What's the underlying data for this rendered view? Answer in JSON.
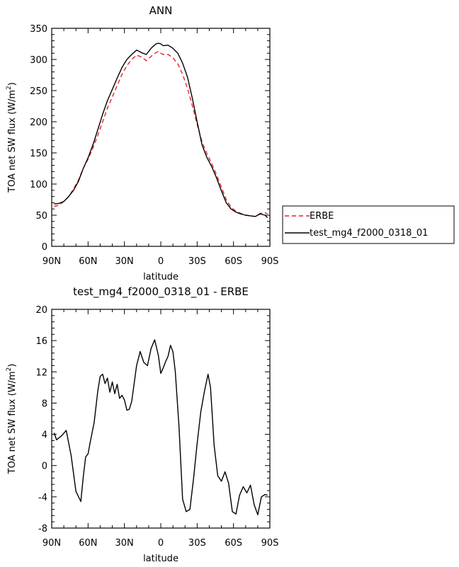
{
  "chart_data": [
    {
      "type": "line",
      "title": "ANN",
      "xlabel": "latitude",
      "ylabel": "TOA net SW flux (W/m",
      "ylabel_sup": "2",
      "ylabel_close": ")",
      "xlim": [
        90,
        -90
      ],
      "ylim": [
        0,
        350
      ],
      "xticks": [
        {
          "value": 90,
          "label": "90N"
        },
        {
          "value": 60,
          "label": "60N"
        },
        {
          "value": 30,
          "label": "30N"
        },
        {
          "value": 0,
          "label": "0"
        },
        {
          "value": -30,
          "label": "30S"
        },
        {
          "value": -60,
          "label": "60S"
        },
        {
          "value": -90,
          "label": "90S"
        }
      ],
      "yticks": [
        0,
        50,
        100,
        150,
        200,
        250,
        300,
        350
      ],
      "grid": false,
      "legend_position": "right",
      "series": [
        {
          "name": "ERBE",
          "color": "#e8202a",
          "dash": "dashed",
          "x": [
            88,
            84,
            80,
            76,
            72,
            68,
            64,
            60,
            56,
            52,
            48,
            44,
            40,
            36,
            32,
            28,
            24,
            20,
            16,
            12,
            8,
            4,
            2,
            0,
            -2,
            -6,
            -10,
            -14,
            -18,
            -22,
            -26,
            -30,
            -34,
            -38,
            -42,
            -46,
            -50,
            -54,
            -58,
            -62,
            -66,
            -70,
            -74,
            -78,
            -82,
            -86,
            -88
          ],
          "y": [
            64,
            66,
            72,
            80,
            92,
            106,
            125,
            140,
            158,
            178,
            200,
            222,
            240,
            258,
            276,
            290,
            300,
            307,
            304,
            298,
            305,
            311,
            313,
            310,
            308,
            308,
            303,
            293,
            276,
            254,
            226,
            196,
            168,
            149,
            133,
            115,
            95,
            75,
            63,
            56,
            53,
            50,
            49,
            48,
            53,
            54,
            52
          ]
        },
        {
          "name": "test_mg4_f2000_0318_01",
          "color": "#000000",
          "dash": "solid",
          "x": [
            88,
            84,
            80,
            76,
            72,
            68,
            64,
            60,
            56,
            52,
            48,
            44,
            40,
            36,
            32,
            28,
            24,
            20,
            16,
            12,
            8,
            4,
            2,
            0,
            -2,
            -6,
            -10,
            -14,
            -18,
            -22,
            -26,
            -30,
            -34,
            -38,
            -42,
            -46,
            -50,
            -54,
            -58,
            -62,
            -66,
            -70,
            -74,
            -78,
            -82,
            -86,
            -88
          ],
          "y": [
            68,
            69,
            72,
            80,
            90,
            104,
            125,
            142,
            163,
            187,
            212,
            234,
            252,
            270,
            287,
            300,
            308,
            315,
            311,
            308,
            318,
            325,
            326,
            325,
            322,
            323,
            318,
            310,
            294,
            272,
            238,
            200,
            163,
            143,
            128,
            110,
            89,
            70,
            60,
            55,
            52,
            50,
            49,
            48,
            52,
            50,
            46
          ]
        }
      ]
    },
    {
      "type": "line",
      "title": "test_mg4_f2000_0318_01 - ERBE",
      "xlabel": "latitude",
      "ylabel": "TOA net SW flux (W/m",
      "ylabel_sup": "2",
      "ylabel_close": ")",
      "xlim": [
        90,
        -90
      ],
      "ylim": [
        -8,
        20
      ],
      "xticks": [
        {
          "value": 90,
          "label": "90N"
        },
        {
          "value": 60,
          "label": "60N"
        },
        {
          "value": 30,
          "label": "30N"
        },
        {
          "value": 0,
          "label": "0"
        },
        {
          "value": -30,
          "label": "30S"
        },
        {
          "value": -60,
          "label": "60S"
        },
        {
          "value": -90,
          "label": "90S"
        }
      ],
      "yticks": [
        -8,
        -4,
        0,
        4,
        8,
        12,
        16,
        20
      ],
      "grid": false,
      "series": [
        {
          "color": "#000000",
          "dash": "solid",
          "x": [
            88,
            86,
            82,
            78,
            74,
            70,
            66,
            64,
            62,
            60,
            58,
            55,
            52,
            50,
            48,
            46,
            44,
            42,
            40,
            38,
            36,
            34,
            32,
            30,
            28,
            26,
            24,
            22,
            20,
            17,
            14,
            11,
            8,
            5,
            2,
            0,
            -2,
            -4,
            -6,
            -8,
            -10,
            -12,
            -15,
            -18,
            -21,
            -24,
            -27,
            -30,
            -33,
            -36,
            -39,
            -41,
            -44,
            -47,
            -50,
            -53,
            -56,
            -59,
            -62,
            -65,
            -68,
            -71,
            -74,
            -77,
            -80,
            -83,
            -86,
            -88
          ],
          "y": [
            4.2,
            3.3,
            3.8,
            4.5,
            1.3,
            -3.3,
            -4.6,
            -1.5,
            1.1,
            1.5,
            3.2,
            5.5,
            9.5,
            11.4,
            11.7,
            10.5,
            11.2,
            9.4,
            10.7,
            9.2,
            10.4,
            8.6,
            9.0,
            8.4,
            7.1,
            7.2,
            8.2,
            10.5,
            12.8,
            14.6,
            13.2,
            12.8,
            15.0,
            16.1,
            14.1,
            11.8,
            12.5,
            13.3,
            14.0,
            15.4,
            14.6,
            12.0,
            5.0,
            -4.3,
            -5.9,
            -5.6,
            -1.7,
            2.8,
            6.9,
            9.5,
            11.7,
            10.0,
            2.6,
            -1.3,
            -2.0,
            -0.8,
            -2.3,
            -5.9,
            -6.2,
            -3.8,
            -2.7,
            -3.5,
            -2.5,
            -5.0,
            -6.3,
            -4.0,
            -3.7,
            -3.8
          ]
        }
      ]
    }
  ]
}
